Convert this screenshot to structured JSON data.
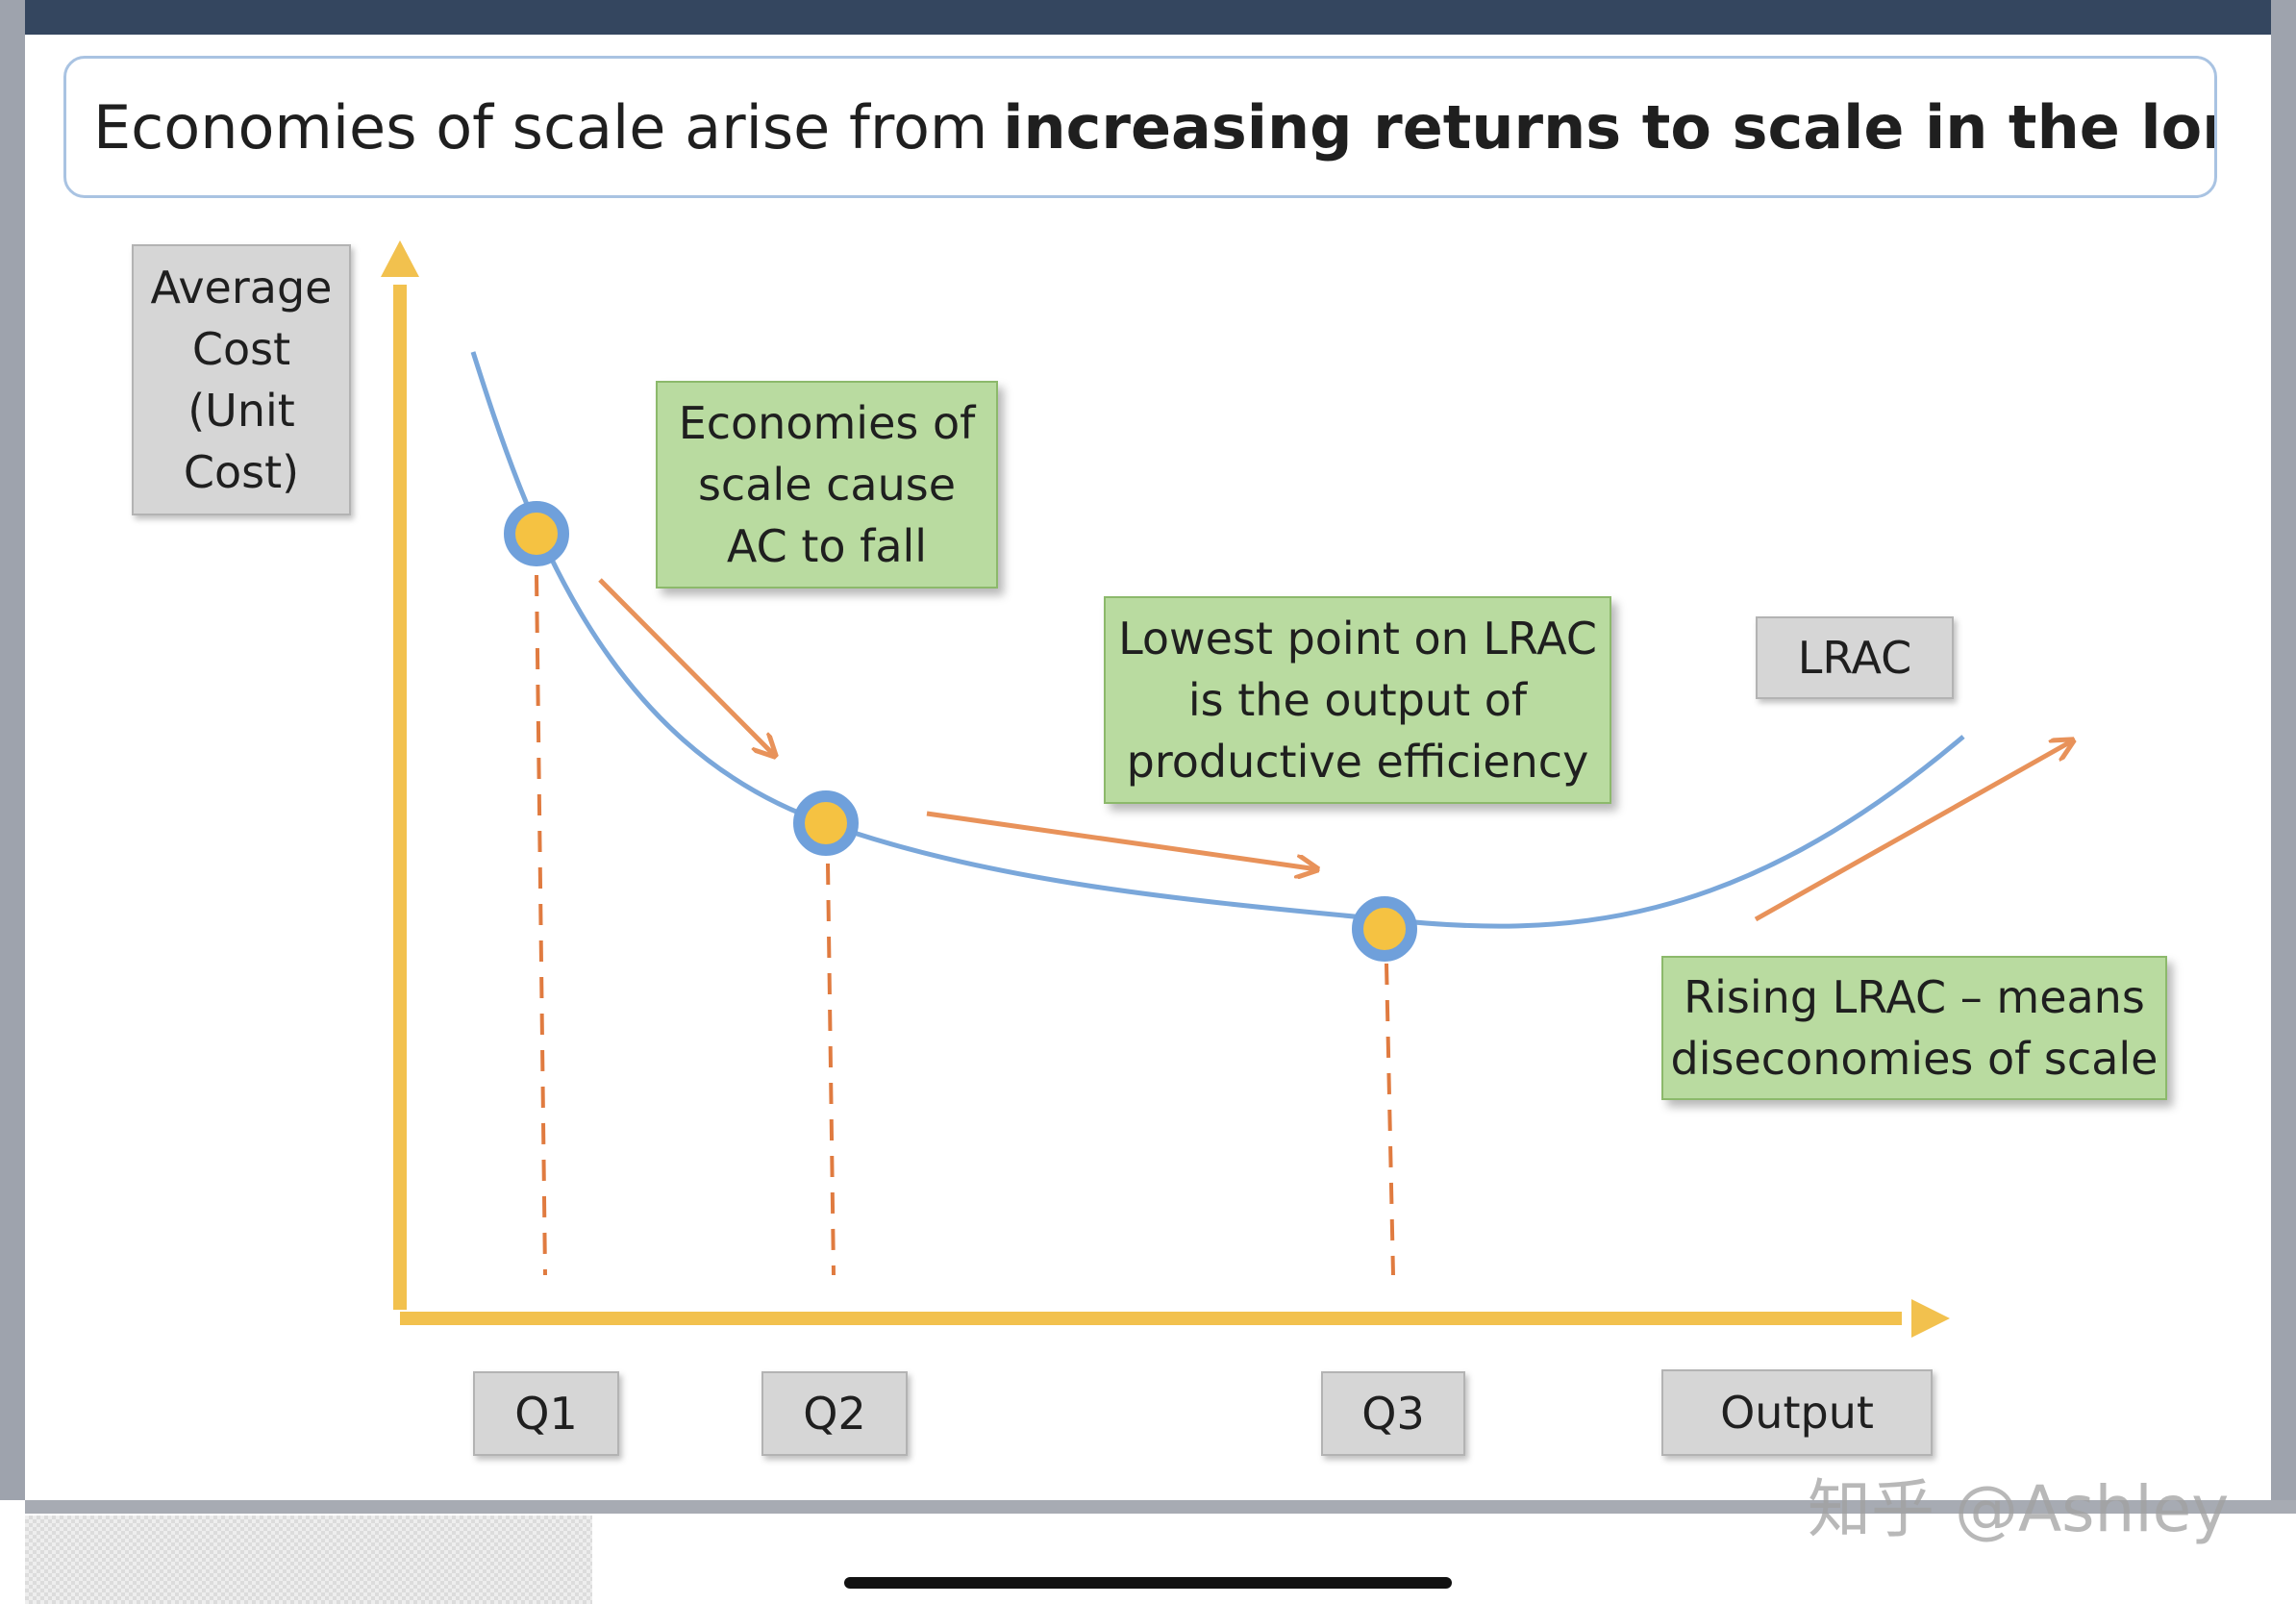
{
  "title": {
    "normal": "Economies of scale arise from",
    "bold": "increasing returns to scale in the long run"
  },
  "axes": {
    "y_label_lines": [
      "Average",
      "Cost",
      "(Unit",
      "Cost)"
    ],
    "x_label": "Output",
    "quantity_labels": [
      "Q1",
      "Q2",
      "Q3"
    ]
  },
  "curve_label": "LRAC",
  "callouts": {
    "economies": [
      "Economies of",
      "scale cause",
      "AC to fall"
    ],
    "lowest": [
      "Lowest point on LRAC",
      "is the output of",
      "productive efficiency"
    ],
    "rising": [
      "Rising LRAC – means",
      "diseconomies of scale"
    ]
  },
  "watermark": "知乎 @Ashley",
  "colors": {
    "axis": "#f2c14e",
    "curve": "#7aa7da",
    "arrow": "#e8925a",
    "dashed": "#e07b40",
    "point_fill": "#f5c242",
    "point_ring": "#6fa0db",
    "green_box": "#b9dba0",
    "grey_box": "#d6d6d6",
    "header": "#34465f"
  }
}
